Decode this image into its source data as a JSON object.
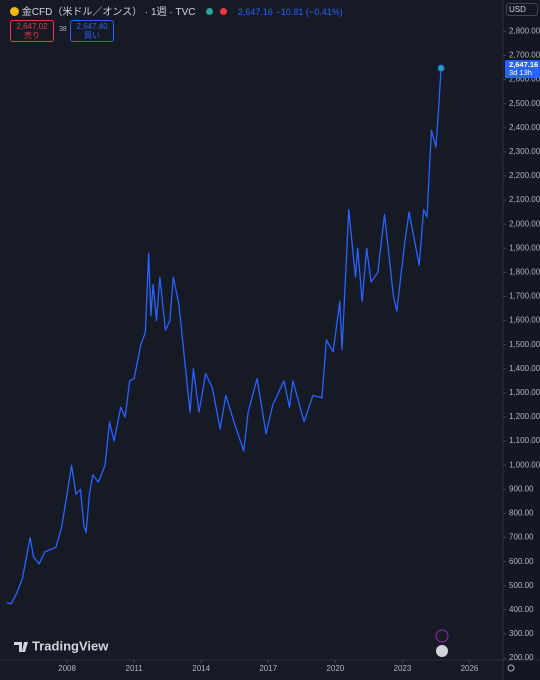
{
  "header": {
    "symbol": "金CFD（米ドル／オンス）",
    "interval": "1週",
    "source": "TVC",
    "quote": "2,647.16",
    "change": "−10.81 (−0.41%)",
    "sell_price": "2,647.02",
    "sell": "売り",
    "spread": "38",
    "buy_price": "2,647.40",
    "buy": "買い",
    "currency": "USD",
    "logo": "TradingView"
  },
  "chart_data": {
    "type": "line",
    "color": "#2962ff",
    "x": [
      2005.3,
      2005.5,
      2005.75,
      2006.0,
      2006.35,
      2006.5,
      2006.75,
      2007.0,
      2007.5,
      2007.75,
      2008.0,
      2008.2,
      2008.4,
      2008.6,
      2008.75,
      2008.85,
      2009.0,
      2009.15,
      2009.4,
      2009.7,
      2009.9,
      2010.1,
      2010.4,
      2010.6,
      2010.8,
      2011.0,
      2011.3,
      2011.5,
      2011.65,
      2011.75,
      2011.85,
      2012.0,
      2012.15,
      2012.4,
      2012.6,
      2012.75,
      2013.0,
      2013.3,
      2013.5,
      2013.65,
      2013.9,
      2014.2,
      2014.5,
      2014.85,
      2015.1,
      2015.5,
      2015.9,
      2016.1,
      2016.5,
      2016.9,
      2017.2,
      2017.7,
      2017.95,
      2018.1,
      2018.6,
      2019.0,
      2019.4,
      2019.6,
      2019.9,
      2020.2,
      2020.3,
      2020.6,
      2020.9,
      2021.0,
      2021.2,
      2021.4,
      2021.6,
      2021.9,
      2022.2,
      2022.6,
      2022.75,
      2023.1,
      2023.3,
      2023.75,
      2023.95,
      2024.1,
      2024.3,
      2024.5,
      2024.6,
      2024.73
    ],
    "values": [
      430,
      425,
      470,
      530,
      700,
      620,
      590,
      640,
      660,
      740,
      880,
      1000,
      880,
      900,
      750,
      720,
      880,
      960,
      930,
      1000,
      1180,
      1100,
      1240,
      1200,
      1350,
      1360,
      1500,
      1550,
      1880,
      1620,
      1750,
      1600,
      1780,
      1560,
      1600,
      1780,
      1670,
      1400,
      1220,
      1400,
      1220,
      1380,
      1320,
      1150,
      1290,
      1170,
      1060,
      1220,
      1360,
      1130,
      1250,
      1350,
      1240,
      1350,
      1180,
      1290,
      1280,
      1520,
      1470,
      1680,
      1480,
      2060,
      1780,
      1900,
      1680,
      1900,
      1760,
      1800,
      2040,
      1700,
      1640,
      1920,
      2050,
      1830,
      2060,
      2030,
      2390,
      2320,
      2450,
      2647.16
    ],
    "last_label": "2,647.16",
    "countdown": "3d 13h",
    "xlim": [
      2005.0,
      2027.5
    ],
    "xticks": [
      2008,
      2011,
      2014,
      2017,
      2020,
      2023,
      2026
    ],
    "ylim": [
      192,
      2930
    ],
    "yticks": [
      {
        "value": 200,
        "label": "200.00"
      },
      {
        "value": 300,
        "label": "300.00"
      },
      {
        "value": 400,
        "label": "400.00"
      },
      {
        "value": 500,
        "label": "500.00"
      },
      {
        "value": 600,
        "label": "600.00"
      },
      {
        "value": 700,
        "label": "700.00"
      },
      {
        "value": 800,
        "label": "800.00"
      },
      {
        "value": 900,
        "label": "900.00"
      },
      {
        "value": 1000,
        "label": "1,000.00"
      },
      {
        "value": 1100,
        "label": "1,100.00"
      },
      {
        "value": 1200,
        "label": "1,200.00"
      },
      {
        "value": 1300,
        "label": "1,300.00"
      },
      {
        "value": 1400,
        "label": "1,400.00"
      },
      {
        "value": 1500,
        "label": "1,500.00"
      },
      {
        "value": 1600,
        "label": "1,600.00"
      },
      {
        "value": 1700,
        "label": "1,700.00"
      },
      {
        "value": 1800,
        "label": "1,800.00"
      },
      {
        "value": 1900,
        "label": "1,900.00"
      },
      {
        "value": 2000,
        "label": "2,000.00"
      },
      {
        "value": 2100,
        "label": "2,100.00"
      },
      {
        "value": 2200,
        "label": "2,200.00"
      },
      {
        "value": 2300,
        "label": "2,300.00"
      },
      {
        "value": 2400,
        "label": "2,400.00"
      },
      {
        "value": 2500,
        "label": "2,500.00"
      },
      {
        "value": 2600,
        "label": "2,600.00"
      },
      {
        "value": 2700,
        "label": "2,700.00"
      },
      {
        "value": 2800,
        "label": "2,800.00"
      }
    ]
  }
}
